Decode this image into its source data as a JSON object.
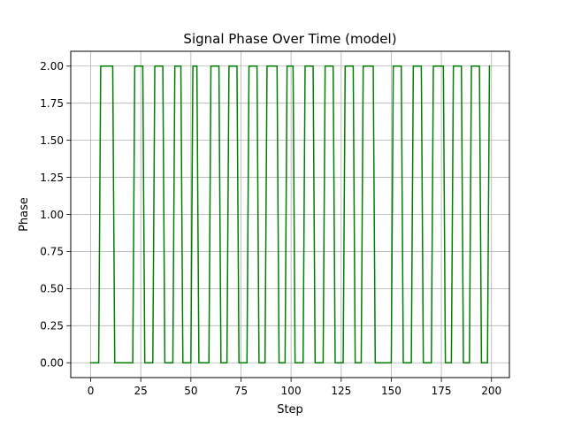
{
  "chart_data": {
    "type": "line",
    "title": "Signal Phase Over Time (model)",
    "xlabel": "Step",
    "ylabel": "Phase",
    "xlim": [
      -9.95,
      208.95
    ],
    "ylim": [
      -0.1,
      2.1
    ],
    "xticks": [
      0,
      25,
      50,
      75,
      100,
      125,
      150,
      175,
      200
    ],
    "yticks": [
      0.0,
      0.25,
      0.5,
      0.75,
      1.0,
      1.25,
      1.5,
      1.75,
      2.0
    ],
    "yticklabels": [
      "0.00",
      "0.25",
      "0.50",
      "0.75",
      "1.00",
      "1.25",
      "1.50",
      "1.75",
      "2.00"
    ],
    "grid": true,
    "legend": "none",
    "series": [
      {
        "color": "#008000",
        "x": [
          0,
          4,
          5,
          11,
          12,
          21,
          22,
          26,
          27,
          31,
          32,
          36,
          37,
          41,
          42,
          45,
          46,
          50,
          51,
          53,
          54,
          59,
          60,
          64,
          65,
          68,
          69,
          73,
          74,
          78,
          79,
          83,
          84,
          87,
          88,
          93,
          94,
          97,
          98,
          101,
          102,
          106,
          107,
          111,
          112,
          116,
          117,
          121,
          122,
          126,
          127,
          131,
          132,
          135,
          136,
          141,
          142,
          150,
          151,
          155,
          156,
          160,
          161,
          165,
          166,
          170,
          171,
          176,
          177,
          180,
          181,
          185,
          186,
          189,
          190,
          194,
          195,
          198,
          199
        ],
        "y": [
          0,
          0,
          2,
          2,
          0,
          0,
          2,
          2,
          0,
          0,
          2,
          2,
          0,
          0,
          2,
          2,
          0,
          0,
          2,
          2,
          0,
          0,
          2,
          2,
          0,
          0,
          2,
          2,
          0,
          0,
          2,
          2,
          0,
          0,
          2,
          2,
          0,
          0,
          2,
          2,
          0,
          0,
          2,
          2,
          0,
          0,
          2,
          2,
          0,
          0,
          2,
          2,
          0,
          0,
          2,
          2,
          0,
          0,
          2,
          2,
          0,
          0,
          2,
          2,
          0,
          0,
          2,
          2,
          0,
          0,
          2,
          2,
          0,
          0,
          2,
          2,
          0,
          0,
          2
        ]
      }
    ]
  }
}
